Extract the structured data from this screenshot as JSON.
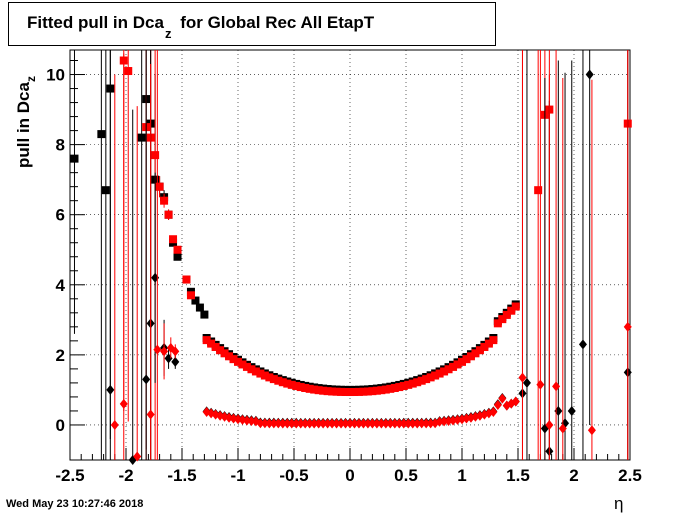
{
  "chart_data": {
    "type": "scatter",
    "title_main": "Fitted pull in Dca",
    "title_sub": "z",
    "title_rest": "for Global Rec All EtapT",
    "ylabel_main": "pull in Dca",
    "ylabel_sub": "z",
    "xlabel": "η",
    "xlim": [
      -2.5,
      2.5
    ],
    "ylim": [
      -1.0,
      10.7
    ],
    "xticks": [
      "-2.5",
      "-2",
      "-1.5",
      "-1",
      "-0.5",
      "0",
      "0.5",
      "1",
      "1.5",
      "2",
      "2.5"
    ],
    "yticks": [
      "0",
      "2",
      "4",
      "6",
      "8",
      "10"
    ],
    "grid": true,
    "series": [
      {
        "marker": "square",
        "color": "#000000",
        "points": [
          [
            -2.46,
            7.6,
            5.0
          ],
          [
            -2.22,
            8.3,
            10.0
          ],
          [
            -2.18,
            6.7,
            10.0
          ],
          [
            -2.14,
            9.6,
            10.0
          ],
          [
            -1.86,
            8.2,
            10.0
          ],
          [
            -1.82,
            9.3,
            10.0
          ],
          [
            -1.78,
            8.6,
            10.0
          ],
          [
            -1.74,
            7.0,
            3.0
          ],
          [
            -1.7,
            6.8,
            0.3
          ],
          [
            -1.66,
            6.5,
            0.2
          ],
          [
            -1.62,
            6.0,
            0.15
          ],
          [
            -1.58,
            5.2,
            0.1
          ],
          [
            -1.54,
            4.8,
            0.1
          ],
          [
            -1.46,
            4.15,
            0.08
          ],
          [
            -1.42,
            3.8,
            0.05
          ],
          [
            -1.38,
            3.55,
            0.05
          ],
          [
            -1.34,
            3.35,
            0.04
          ],
          [
            -1.3,
            3.15,
            0.04
          ]
        ],
        "curve": "upper"
      },
      {
        "marker": "square",
        "color": "#ff0000",
        "points": [
          [
            -2.02,
            10.4,
            10.0
          ],
          [
            -1.98,
            10.1,
            10.0
          ],
          [
            -1.82,
            8.5,
            10.0
          ],
          [
            -1.78,
            8.2,
            10.0
          ],
          [
            -1.74,
            7.7,
            10.0
          ],
          [
            -1.7,
            6.8,
            0.3
          ],
          [
            -1.66,
            6.4,
            0.2
          ],
          [
            -1.62,
            6.0,
            0.15
          ],
          [
            -1.58,
            5.3,
            0.1
          ],
          [
            -1.54,
            5.0,
            0.1
          ],
          [
            -1.46,
            4.15,
            0.08
          ],
          [
            -1.42,
            3.7,
            0.05
          ],
          [
            1.68,
            6.7,
            10.0
          ],
          [
            1.74,
            8.85,
            10.0
          ],
          [
            1.78,
            9.0,
            10.0
          ],
          [
            2.48,
            8.6,
            10.0
          ]
        ],
        "curve": "upper"
      },
      {
        "marker": "diamond",
        "color": "#000000",
        "points": [
          [
            -2.14,
            1.0,
            10.0
          ],
          [
            -1.94,
            -1.0,
            10.0
          ],
          [
            -1.82,
            1.3,
            10.0
          ],
          [
            -1.78,
            2.9,
            10.0
          ],
          [
            -1.74,
            4.2,
            3.0
          ],
          [
            -1.66,
            2.2,
            0.8
          ],
          [
            -1.62,
            1.9,
            0.3
          ],
          [
            -1.56,
            1.8,
            0.2
          ],
          [
            1.54,
            0.9,
            10.0
          ],
          [
            1.58,
            1.2,
            10.0
          ],
          [
            1.74,
            -0.1,
            10.0
          ],
          [
            1.78,
            -0.75,
            10.0
          ],
          [
            1.86,
            0.4,
            10.0
          ],
          [
            1.92,
            0.05,
            10.0
          ],
          [
            1.98,
            0.4,
            10.0
          ],
          [
            2.08,
            2.3,
            10.0
          ],
          [
            2.14,
            10.0,
            10.0
          ],
          [
            2.48,
            1.5,
            10.0
          ]
        ],
        "curve": "lower"
      },
      {
        "marker": "diamond",
        "color": "#ff0000",
        "points": [
          [
            -2.1,
            0.0,
            10.0
          ],
          [
            -2.02,
            0.6,
            10.0
          ],
          [
            -1.9,
            -0.9,
            10.0
          ],
          [
            -1.78,
            0.3,
            10.0
          ],
          [
            -1.72,
            2.15,
            10.0
          ],
          [
            -1.66,
            2.1,
            0.8
          ],
          [
            -1.6,
            2.2,
            0.3
          ],
          [
            -1.56,
            2.1,
            0.2
          ],
          [
            1.54,
            1.35,
            10.0
          ],
          [
            1.7,
            1.15,
            10.0
          ],
          [
            1.78,
            0.0,
            10.0
          ],
          [
            1.84,
            1.1,
            10.0
          ],
          [
            1.9,
            -0.1,
            10.0
          ],
          [
            2.16,
            -0.15,
            10.0
          ],
          [
            2.48,
            2.8,
            10.0
          ]
        ],
        "curve": "lower"
      }
    ],
    "footer": "Wed May 23 10:27:46 2018"
  }
}
